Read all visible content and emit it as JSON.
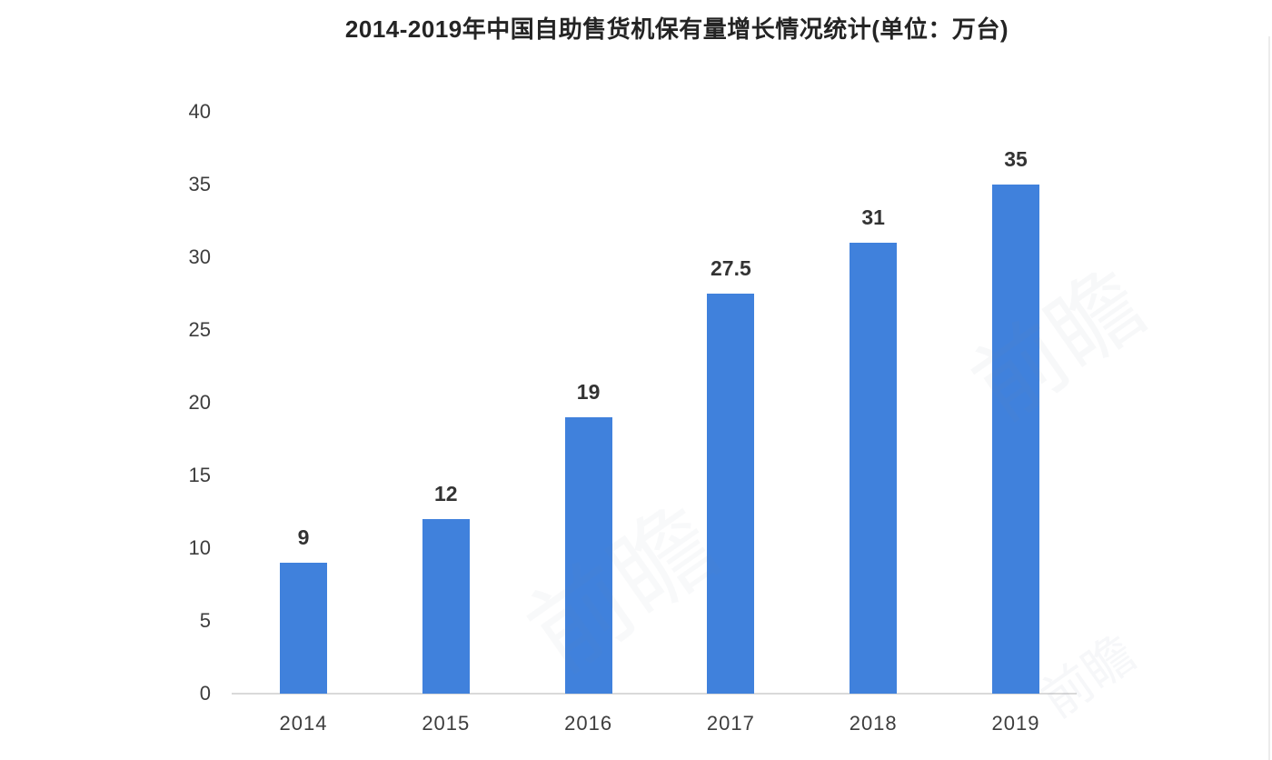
{
  "chart_data": {
    "type": "bar",
    "title": "2014-2019年中国自助售货机保有量增长情况统计(单位：万台)",
    "categories": [
      "2014",
      "2015",
      "2016",
      "2017",
      "2018",
      "2019"
    ],
    "values": [
      9,
      12,
      19,
      27.5,
      31,
      35
    ],
    "value_labels": [
      "9",
      "12",
      "19",
      "27.5",
      "31",
      "35"
    ],
    "y_ticks": [
      "0",
      "5",
      "10",
      "15",
      "20",
      "25",
      "30",
      "35",
      "40"
    ],
    "ylim": [
      0,
      40
    ],
    "xlabel": "",
    "ylabel": "",
    "unit": "万台",
    "grid": "off",
    "legend": "none",
    "bar_color": "#4081DC",
    "axis_line_color": "#d9d9d9",
    "text_color": "#3d3d3d",
    "title_color": "#242424",
    "background": "#ffffff"
  },
  "watermark": {
    "text": "前瞻"
  }
}
